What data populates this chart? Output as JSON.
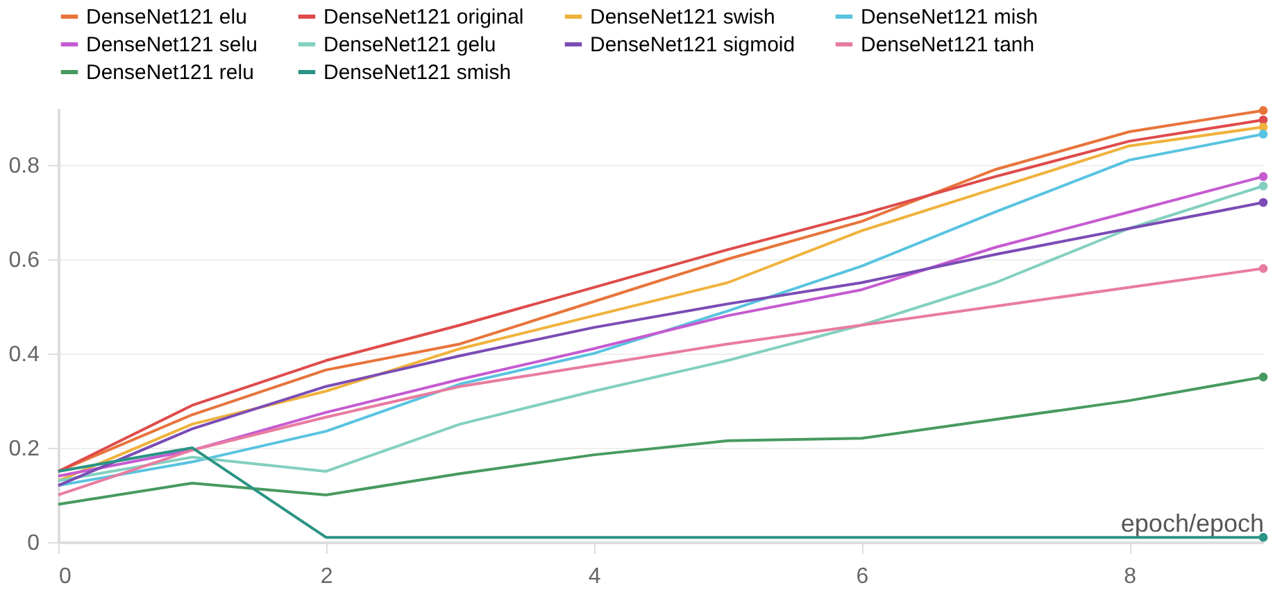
{
  "chart_data": {
    "type": "line",
    "xlabel": "epoch/epoch",
    "x": [
      0,
      1,
      2,
      3,
      4,
      5,
      6,
      7,
      8,
      9
    ],
    "xlim": [
      0,
      9
    ],
    "xticks": [
      0,
      2,
      4,
      6,
      8
    ],
    "ylim": [
      0,
      0.92
    ],
    "yticks": [
      0,
      0.2,
      0.4,
      0.6,
      0.8
    ],
    "grid": "y",
    "legend": "top",
    "series": [
      {
        "name": "DenseNet121 elu",
        "color": "#e8743b",
        "values": [
          0.15,
          0.27,
          0.365,
          0.42,
          0.51,
          0.6,
          0.68,
          0.79,
          0.87,
          0.915
        ]
      },
      {
        "name": "DenseNet121 original",
        "color": "#df4b4b",
        "values": [
          0.15,
          0.29,
          0.385,
          0.46,
          0.54,
          0.62,
          0.695,
          0.775,
          0.85,
          0.895
        ]
      },
      {
        "name": "DenseNet121 swish",
        "color": "#f0b23c",
        "values": [
          0.13,
          0.25,
          0.32,
          0.41,
          0.48,
          0.55,
          0.66,
          0.75,
          0.84,
          0.88
        ]
      },
      {
        "name": "DenseNet121 mish",
        "color": "#58c3e0",
        "values": [
          0.12,
          0.17,
          0.235,
          0.335,
          0.4,
          0.49,
          0.585,
          0.7,
          0.81,
          0.865
        ]
      },
      {
        "name": "DenseNet121 selu",
        "color": "#c55bd0",
        "values": [
          0.14,
          0.195,
          0.275,
          0.345,
          0.41,
          0.48,
          0.535,
          0.625,
          0.7,
          0.775
        ]
      },
      {
        "name": "DenseNet121 gelu",
        "color": "#83d0c0",
        "values": [
          0.13,
          0.18,
          0.15,
          0.25,
          0.32,
          0.385,
          0.46,
          0.55,
          0.665,
          0.755
        ]
      },
      {
        "name": "DenseNet121 sigmoid",
        "color": "#7a4cb5",
        "values": [
          0.12,
          0.24,
          0.33,
          0.395,
          0.455,
          0.505,
          0.55,
          0.61,
          0.665,
          0.72
        ]
      },
      {
        "name": "DenseNet121 tanh",
        "color": "#e87ca0",
        "values": [
          0.1,
          0.195,
          0.265,
          0.33,
          0.375,
          0.42,
          0.46,
          0.5,
          0.54,
          0.58
        ]
      },
      {
        "name": "DenseNet121 relu",
        "color": "#479a5f",
        "values": [
          0.08,
          0.125,
          0.1,
          0.145,
          0.185,
          0.215,
          0.22,
          0.26,
          0.3,
          0.35
        ]
      },
      {
        "name": "DenseNet121 smish",
        "color": "#2a9485",
        "values": [
          0.15,
          0.2,
          0.01,
          0.01,
          0.01,
          0.01,
          0.01,
          0.01,
          0.01,
          0.01
        ]
      }
    ]
  }
}
